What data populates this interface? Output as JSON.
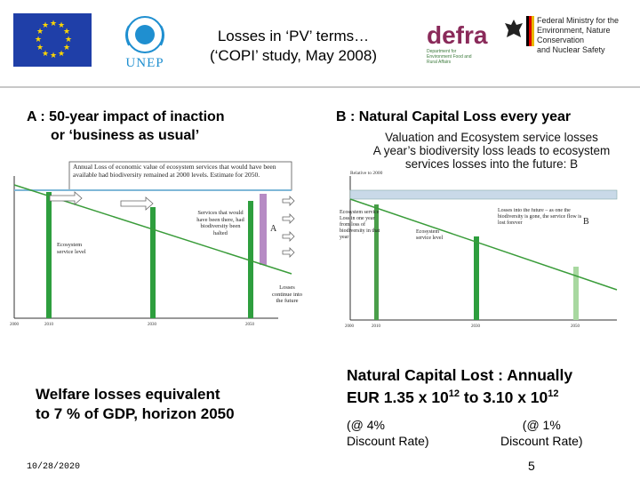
{
  "header": {
    "title_line1": "Losses in ‘PV’ terms…",
    "title_line2": "(‘COPI’ study, May 2008)",
    "logos": {
      "eu": "eu-flag",
      "unep": "UNEP",
      "defra": "defra",
      "defra_sub": "Department for Environment Food and Rural Affairs",
      "bmu_line1": "Federal Ministry for the",
      "bmu_line2": "Environment, Nature Conservation",
      "bmu_line3": "and Nuclear Safety"
    }
  },
  "section_a": {
    "heading_line1": "A : 50-year impact of inaction",
    "heading_line2": "or ‘business as usual’",
    "chart": {
      "caption": "Annual Loss of economic value of ecosystem services that would have been available had biodiversity remained at 2000 levels. Estimate for 2050.",
      "label_services": "Services that would have been there, had biodiversity been halted",
      "label_ecosystem": "Ecosystem service level",
      "label_continue": "Losses continue into the future",
      "marker": "A",
      "xticks": [
        "2000",
        "2010",
        "2030",
        "2050"
      ]
    },
    "welfare_line1": "Welfare losses equivalent",
    "welfare_line2": "to 7 % of GDP, horizon 2050"
  },
  "section_b": {
    "heading": "B : Natural Capital Loss every year",
    "valuation_line1": "Valuation and Ecosystem service losses",
    "valuation_line2": "A year’s biodiversity loss leads to ecosystem",
    "valuation_line3": "services losses into the future: B",
    "chart": {
      "relative_label": "Relative to 2000",
      "label_ecosystem_loss": "Ecosystem service Loss in one year from loss of biodiversity in that year",
      "label_losses_future": "Losses into the future – as one the biodiversity is gone, the service flow is lost forever",
      "label_ecosystem": "Ecosystem service level",
      "marker": "B",
      "xticks": [
        "2000",
        "2010",
        "2030",
        "2050"
      ]
    },
    "ncl_line1": "Natural Capital Lost : Annually",
    "ncl_line2_prefix": "EUR 1.35 x 10",
    "ncl_exp1": "12",
    "ncl_mid": " to 3.10 x 10",
    "ncl_exp2": "12",
    "disc_left_1": "(@ 4%",
    "disc_left_2": "Discount Rate)",
    "disc_right_1": "(@ 1%",
    "disc_right_2": "Discount Rate)"
  },
  "footer": {
    "date": "10/28/2020",
    "page": "5"
  }
}
